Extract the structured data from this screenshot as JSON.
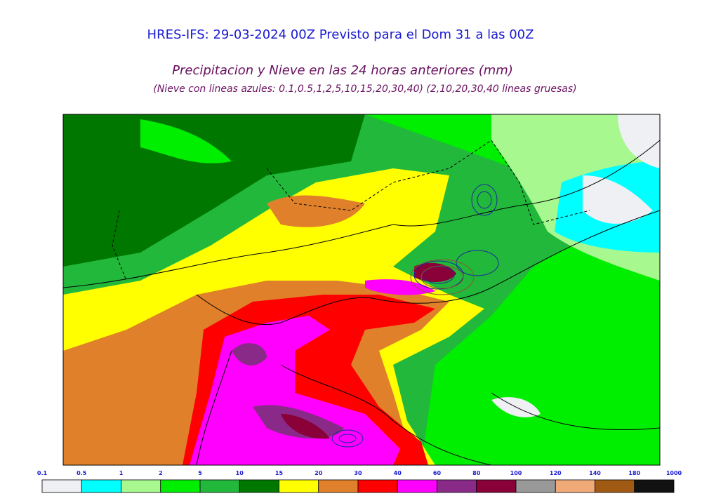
{
  "header": {
    "title": "HRES-IFS: 29-03-2024 00Z Previsto para el Dom 31 a las 00Z",
    "subtitle": "Precipitacion y Nieve en las 24 horas anteriores (mm)",
    "note": "(Nieve con lineas azules: 0.1,0.5,1,2,5,10,15,20,30,40)  (2,10,20,30,40 lineas gruesas)"
  },
  "legend": {
    "levels": [
      0.1,
      0.5,
      1,
      2,
      5,
      10,
      15,
      20,
      30,
      40,
      60,
      80,
      100,
      120,
      140,
      180,
      1000
    ],
    "colors": [
      "#eef0f4",
      "#00ffff",
      "#a8f890",
      "#00ee00",
      "#22b83c",
      "#007800",
      "#ffff00",
      "#e0802a",
      "#ff0000",
      "#ff00ff",
      "#8a2a88",
      "#8a0038",
      "#999999",
      "#f0aa78",
      "#a05a14",
      "#111111"
    ]
  }
}
